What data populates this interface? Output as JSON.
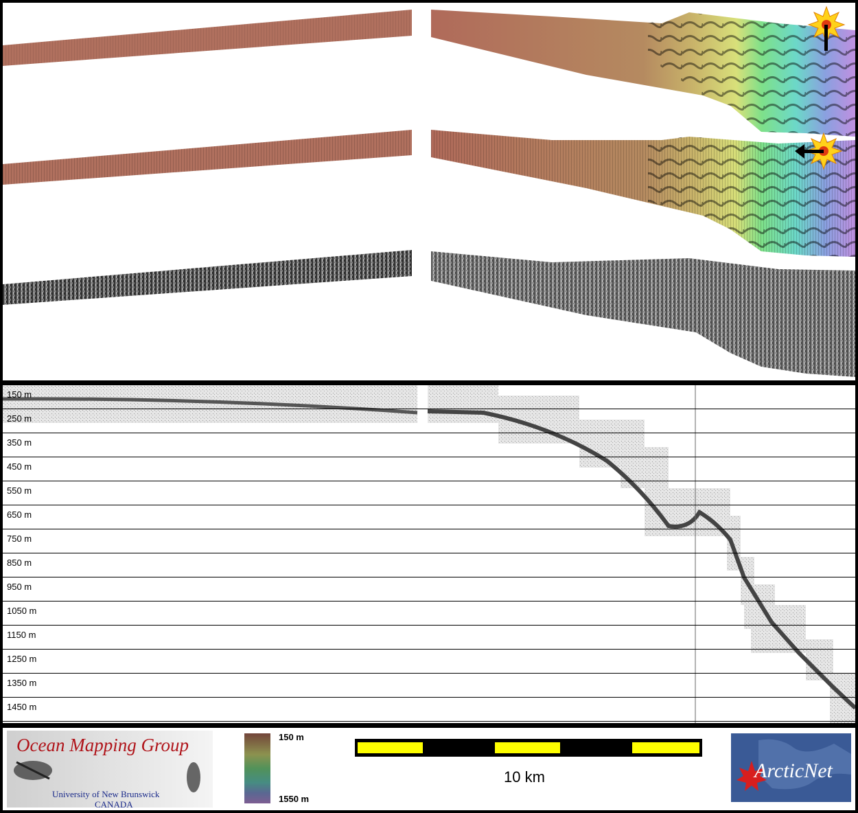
{
  "depth_profile": {
    "labels": [
      "150 m",
      "250 m",
      "350 m",
      "450 m",
      "550 m",
      "650 m",
      "750 m",
      "850 m",
      "950 m",
      "1050 m",
      "1150 m",
      "1250 m",
      "1350 m",
      "1450 m"
    ]
  },
  "colorbar": {
    "top_label": "150 m",
    "bottom_label": "1550 m"
  },
  "scale_bar": {
    "label": "10 km"
  },
  "logo_omg": {
    "title": "Ocean Mapping Group",
    "line1": "University of New Brunswick",
    "line2": "CANADA"
  },
  "logo_arcticnet": {
    "text": "ArcticNet"
  },
  "colors": {
    "bar_yellow": "#ffff00",
    "bar_black": "#000000",
    "logo_red": "#b0141a",
    "logo_blue": "#1a2a8a",
    "arctic_bg": "#3a5a96"
  },
  "icons": [
    "sun-icon-top",
    "sun-icon-middle",
    "arrow-down-icon",
    "arrow-left-icon"
  ]
}
